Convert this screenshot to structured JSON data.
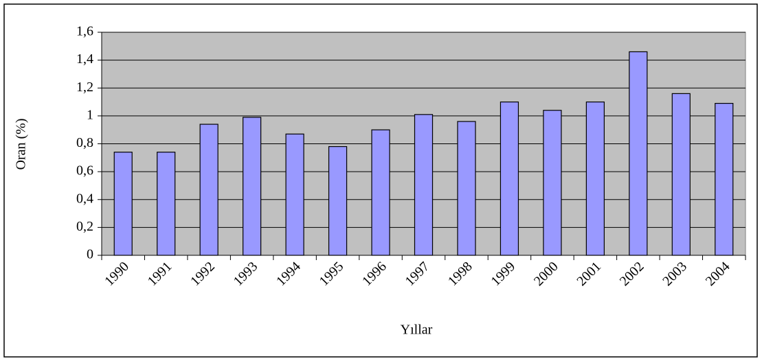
{
  "chart_data": {
    "type": "bar",
    "x_label": "Yıllar",
    "y_label": "Oran (%)",
    "categories": [
      "1990",
      "1991",
      "1992",
      "1993",
      "1994",
      "1995",
      "1996",
      "1997",
      "1998",
      "1999",
      "2000",
      "2001",
      "2002",
      "2003",
      "2004"
    ],
    "values": [
      0.74,
      0.74,
      0.94,
      0.99,
      0.87,
      0.78,
      0.9,
      1.01,
      0.96,
      1.1,
      1.04,
      1.1,
      1.46,
      1.16,
      1.09
    ],
    "color": "#9999ff",
    "ylim": [
      0,
      1.6
    ],
    "yticks": [
      0,
      {
        "value": 0.2,
        "label": "0,2"
      },
      {
        "value": 0.4,
        "label": "0,4"
      },
      {
        "value": 0.6,
        "label": "0,6"
      },
      {
        "value": 0.8,
        "label": "0,8"
      },
      1,
      {
        "value": 1.2,
        "label": "1,2"
      },
      {
        "value": 1.4,
        "label": "1,4"
      },
      {
        "value": 1.6,
        "label": "1,6"
      }
    ],
    "grid": true
  }
}
